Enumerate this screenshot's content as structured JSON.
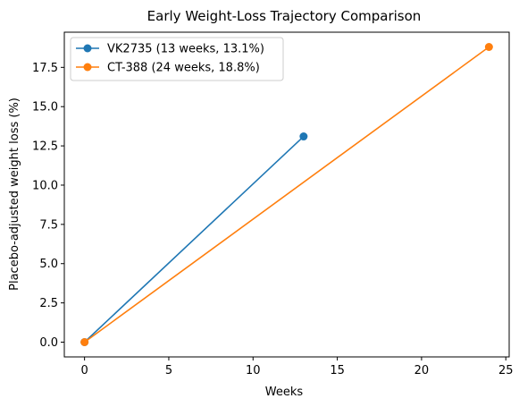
{
  "chart_data": {
    "type": "line",
    "title": "Early Weight-Loss Trajectory Comparison",
    "xlabel": "Weeks",
    "ylabel": "Placebo-adjusted weight loss (%)",
    "xlim": [
      -1.2,
      25.2
    ],
    "ylim": [
      -0.94,
      19.74
    ],
    "xticks": [
      0,
      5,
      10,
      15,
      20,
      25
    ],
    "xtick_labels": [
      "0",
      "5",
      "10",
      "15",
      "20",
      "25"
    ],
    "yticks": [
      0,
      2.5,
      5,
      7.5,
      10,
      12.5,
      15,
      17.5
    ],
    "ytick_labels": [
      "0.0",
      "2.5",
      "5.0",
      "7.5",
      "10.0",
      "12.5",
      "15.0",
      "17.5"
    ],
    "grid": false,
    "legend_position": "upper-left",
    "series": [
      {
        "name": "VK2735 (13 weeks, 13.1%)",
        "color": "#1f77b4",
        "x": [
          0,
          13
        ],
        "y": [
          0,
          13.1
        ]
      },
      {
        "name": "CT-388 (24 weeks, 18.8%)",
        "color": "#ff7f0e",
        "x": [
          0,
          24
        ],
        "y": [
          0,
          18.8
        ]
      }
    ]
  }
}
